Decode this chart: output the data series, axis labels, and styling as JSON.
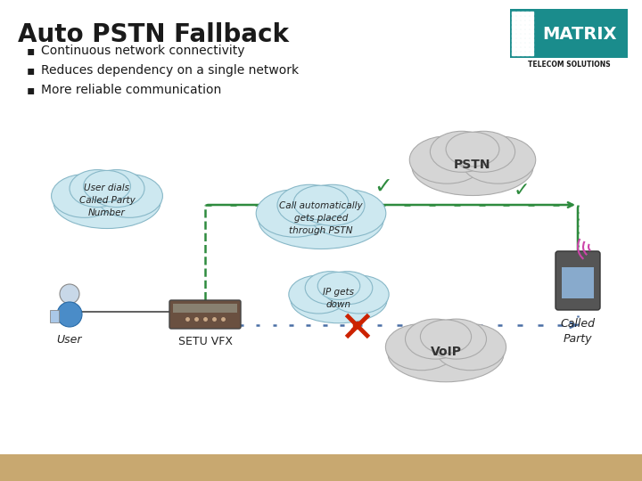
{
  "title": "Auto PSTN Fallback",
  "bullets": [
    "Continuous network connectivity",
    "Reduces dependency on a single network",
    "More reliable communication"
  ],
  "bg_color": "#ffffff",
  "title_color": "#1a1a1a",
  "bullet_color": "#1a1a1a",
  "bottom_bar_color": "#c8a870",
  "green": "#2e8b3e",
  "blue": "#4a6fa5",
  "red": "#cc2200",
  "pstn_label": "PSTN",
  "voip_label": "VoIP",
  "setu_label": "SETU VFX",
  "user_label": "User",
  "called_party_label": "Called\nParty",
  "user_dials_text": "User dials\nCalled Party\nNumber",
  "call_auto_text": "Call automatically\ngets placed\nthrough PSTN",
  "ip_down_text": "IP gets\ndown",
  "matrix_teal": "#1a8c8c",
  "matrix_dark": "#1a1a1a"
}
